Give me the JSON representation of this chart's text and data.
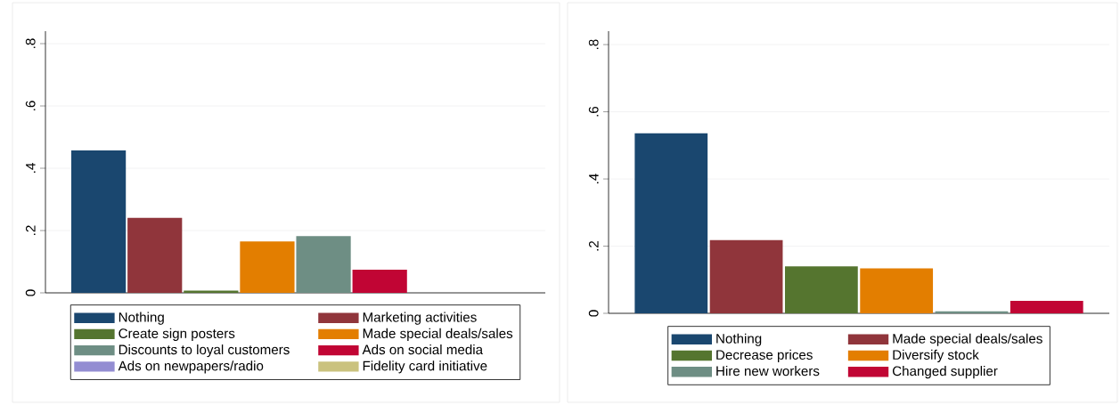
{
  "chart_data": [
    {
      "type": "bar",
      "categories": [
        null
      ],
      "ylim": [
        0,
        0.84
      ],
      "yticks": [
        0,
        {
          "value": 0.2,
          "label": ".2"
        },
        {
          "value": 0.4,
          "label": ".4"
        },
        {
          "value": 0.6,
          "label": ".6"
        },
        {
          "value": 0.8,
          "label": ".8"
        }
      ],
      "grid": "y",
      "legend": "bottom",
      "series": [
        {
          "name": "Nothing",
          "color": "#1a476f",
          "values": [
            0.457
          ]
        },
        {
          "name": "Marketing activities",
          "color": "#90353b",
          "values": [
            0.241
          ]
        },
        {
          "name": "Create sign posters",
          "color": "#55752f",
          "values": [
            0.007
          ]
        },
        {
          "name": "Made special deals/sales",
          "color": "#e37e00",
          "values": [
            0.165
          ]
        },
        {
          "name": "Discounts to loyal customers",
          "color": "#6e8e84",
          "values": [
            0.182
          ]
        },
        {
          "name": "Ads on social media",
          "color": "#c10534",
          "values": [
            0.074
          ]
        },
        {
          "name": "Ads on newpapers/radio",
          "color": "#938dd2",
          "values": [
            null
          ]
        },
        {
          "name": "Fidelity card initiative",
          "color": "#cac27e",
          "values": [
            null
          ]
        }
      ]
    },
    {
      "type": "bar",
      "categories": [
        null
      ],
      "ylim": [
        0,
        0.84
      ],
      "yticks": [
        0,
        {
          "value": 0.2,
          "label": ".2"
        },
        {
          "value": 0.4,
          "label": ".4"
        },
        {
          "value": 0.6,
          "label": ".6"
        },
        {
          "value": 0.8,
          "label": ".8"
        }
      ],
      "grid": "y",
      "legend": "bottom",
      "series": [
        {
          "name": "Nothing",
          "color": "#1a476f",
          "values": [
            0.536
          ]
        },
        {
          "name": "Made special deals/sales",
          "color": "#90353b",
          "values": [
            0.218
          ]
        },
        {
          "name": "Decrease prices",
          "color": "#55752f",
          "values": [
            0.14
          ]
        },
        {
          "name": "Diversify stock",
          "color": "#e37e00",
          "values": [
            0.134
          ]
        },
        {
          "name": "Hire new workers",
          "color": "#6e8e84",
          "values": [
            0.006
          ]
        },
        {
          "name": "Changed supplier",
          "color": "#c10534",
          "values": [
            0.037
          ]
        }
      ]
    }
  ]
}
